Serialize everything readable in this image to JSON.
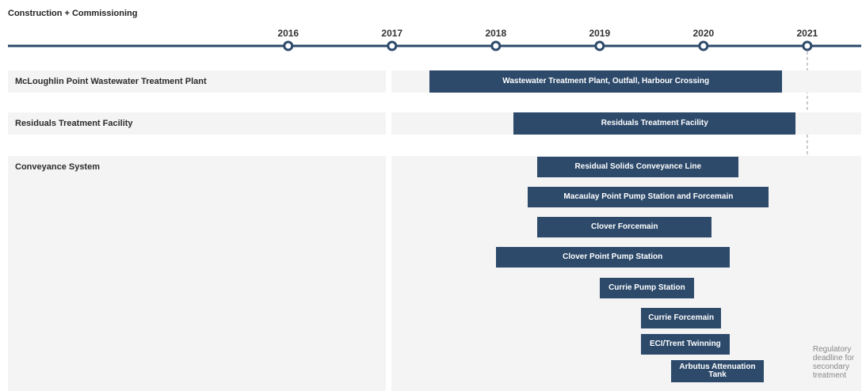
{
  "chart_data": {
    "type": "gantt",
    "title": "Construction + Commissioning",
    "xlim": [
      2013.3,
      2021.52
    ],
    "xticks": [
      2016,
      2017,
      2018,
      2019,
      2020,
      2021
    ],
    "color": "#2d4a6b",
    "groups": [
      {
        "name": "McLoughlin Point Wastewater Treatment Plant",
        "tasks": [
          {
            "name": "Wastewater Treatment Plant, Outfall, Harbour Crossing",
            "start": 2017.36,
            "end": 2020.76
          }
        ]
      },
      {
        "name": "Residuals Treatment Facility",
        "tasks": [
          {
            "name": "Residuals Treatment Facility",
            "start": 2018.17,
            "end": 2020.89
          }
        ]
      },
      {
        "name": "Conveyance System",
        "tasks": [
          {
            "name": "Residual Solids Conveyance Line",
            "start": 2018.4,
            "end": 2020.34
          },
          {
            "name": "Macaulay Point Pump Station and Forcemain",
            "start": 2018.31,
            "end": 2020.63
          },
          {
            "name": "Clover Forcemain",
            "start": 2018.4,
            "end": 2020.08
          },
          {
            "name": "Clover Point Pump Station",
            "start": 2018.0,
            "end": 2020.25
          },
          {
            "name": "Currie Pump Station",
            "start": 2019.0,
            "end": 2019.91
          },
          {
            "name": "Currie Forcemain",
            "start": 2019.4,
            "end": 2020.17
          },
          {
            "name": "ECI/Trent Twinning",
            "start": 2019.4,
            "end": 2020.25
          },
          {
            "name": "Arbutus Attenuation Tank",
            "start": 2019.69,
            "end": 2020.58
          }
        ]
      }
    ],
    "deadline": {
      "x": 2021,
      "label": [
        "Regulatory",
        "deadline for",
        "secondary",
        "treatment"
      ]
    }
  }
}
